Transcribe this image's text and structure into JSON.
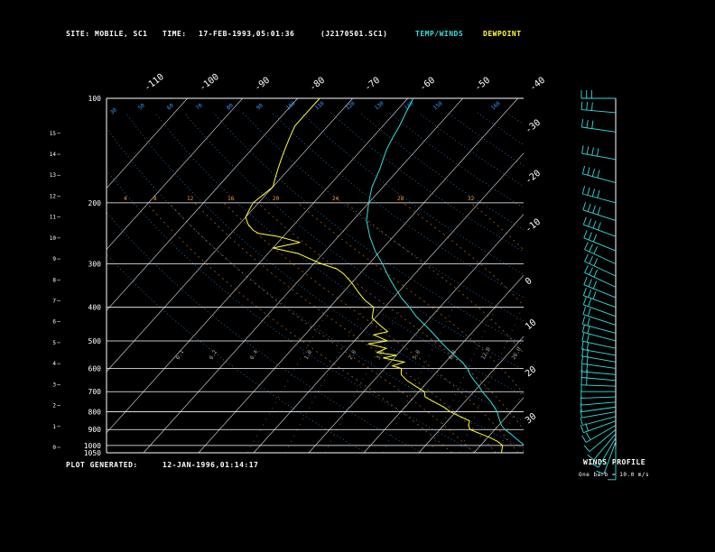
{
  "header": {
    "site_label": "SITE:",
    "site_value": "MOBILE, SC1",
    "time_label": "TIME:",
    "time_value": "17-FEB-1993,05:01:36",
    "file_name": "(J2170501.SC1)",
    "temp_winds_label": "TEMP/WINDS",
    "dewpoint_label": "DEWPOINT"
  },
  "footer": {
    "plot_generated_label": "PLOT GENERATED:",
    "plot_generated_value": "12-JAN-1996,01:14:17",
    "winds_profile_label": "WINDS PROFILE",
    "barb_note": "One barb = 10.0 m/s"
  },
  "colors": {
    "background": "#000000",
    "text": "#ffffff",
    "temperature_wind": "#33dddd",
    "dewpoint": "#ffff33",
    "isobar": "#ffffff",
    "isotherm": "#ffffff",
    "mixing_ratio": "#ff6600",
    "dry_adiabat": "#3399ff",
    "moist_adiabat": "#ff9933"
  },
  "chart_data": {
    "type": "skew-t log-p",
    "pressure_ticks": [
      100,
      200,
      300,
      400,
      500,
      600,
      700,
      800,
      900,
      1000,
      1050
    ],
    "height_km_ticks": [
      15,
      14,
      13,
      12,
      11,
      10,
      9,
      8,
      7,
      6,
      5,
      4,
      3,
      2,
      1,
      0
    ],
    "top_temp_ticks": [
      "-110",
      "-100",
      "-90",
      "-80",
      "-70",
      "-60",
      "-50",
      "-40"
    ],
    "right_temp_ticks": [
      "-30",
      "-20",
      "-10",
      "0",
      "10",
      "20",
      "30"
    ],
    "isotherms_c": [
      -110,
      -100,
      -90,
      -80,
      -70,
      -60,
      -50,
      -40,
      -30,
      -20,
      -10,
      0,
      10,
      20,
      30,
      40
    ],
    "dry_adiabat_labels": [
      "30",
      "50",
      "60",
      "70",
      "80",
      "90",
      "100",
      "110",
      "120",
      "130",
      "140",
      "150",
      "160"
    ],
    "mixing_ratio_labels": [
      "0.1",
      "0.2",
      "0.4",
      "1.0",
      "2.0",
      "3.0",
      "5.0",
      "8.0",
      "12.0",
      "20.0"
    ],
    "moist_labels": [
      "4",
      "8",
      "12",
      "16",
      "20",
      "24",
      "28",
      "32"
    ],
    "ylim_hpa": [
      100,
      1050
    ],
    "temperature_c": [
      [
        1050,
        9.0
      ],
      [
        1000,
        8.0
      ],
      [
        975,
        6.5
      ],
      [
        950,
        5.0
      ],
      [
        925,
        3.5
      ],
      [
        900,
        1.8
      ],
      [
        875,
        0.5
      ],
      [
        850,
        -0.5
      ],
      [
        825,
        -1.5
      ],
      [
        800,
        -2.5
      ],
      [
        775,
        -3.8
      ],
      [
        750,
        -5.2
      ],
      [
        725,
        -6.8
      ],
      [
        700,
        -8.5
      ],
      [
        675,
        -10.0
      ],
      [
        650,
        -11.8
      ],
      [
        625,
        -13.5
      ],
      [
        600,
        -15.0
      ],
      [
        575,
        -17.0
      ],
      [
        550,
        -19.5
      ],
      [
        525,
        -22.0
      ],
      [
        500,
        -24.5
      ],
      [
        475,
        -27.0
      ],
      [
        450,
        -29.8
      ],
      [
        425,
        -32.8
      ],
      [
        400,
        -35.5
      ],
      [
        375,
        -38.6
      ],
      [
        350,
        -41.5
      ],
      [
        325,
        -44.5
      ],
      [
        300,
        -47.5
      ],
      [
        275,
        -51.0
      ],
      [
        250,
        -54.3
      ],
      [
        225,
        -57.5
      ],
      [
        200,
        -60.0
      ],
      [
        180,
        -62.0
      ],
      [
        160,
        -63.5
      ],
      [
        150,
        -64.5
      ],
      [
        140,
        -65.5
      ],
      [
        130,
        -66.3
      ],
      [
        120,
        -67.0
      ],
      [
        110,
        -68.0
      ],
      [
        100,
        -69.0
      ]
    ],
    "dewpoint_c": [
      [
        1050,
        5.0
      ],
      [
        1000,
        4.0
      ],
      [
        975,
        2.5
      ],
      [
        950,
        0.5
      ],
      [
        925,
        -2.0
      ],
      [
        900,
        -4.5
      ],
      [
        875,
        -5.5
      ],
      [
        850,
        -6.0
      ],
      [
        825,
        -8.5
      ],
      [
        800,
        -11.0
      ],
      [
        775,
        -13.0
      ],
      [
        750,
        -15.5
      ],
      [
        725,
        -18.0
      ],
      [
        700,
        -19.0
      ],
      [
        675,
        -21.5
      ],
      [
        650,
        -24.0
      ],
      [
        625,
        -26.0
      ],
      [
        600,
        -27.0
      ],
      [
        590,
        -29.0
      ],
      [
        575,
        -27.5
      ],
      [
        560,
        -32.0
      ],
      [
        550,
        -30.0
      ],
      [
        540,
        -34.0
      ],
      [
        525,
        -33.0
      ],
      [
        510,
        -37.0
      ],
      [
        500,
        -34.0
      ],
      [
        480,
        -37.5
      ],
      [
        470,
        -35.5
      ],
      [
        450,
        -38.0
      ],
      [
        430,
        -40.5
      ],
      [
        400,
        -42.0
      ],
      [
        380,
        -45.0
      ],
      [
        360,
        -47.5
      ],
      [
        340,
        -50.0
      ],
      [
        320,
        -53.0
      ],
      [
        310,
        -55.0
      ],
      [
        300,
        -58.5
      ],
      [
        290,
        -61.5
      ],
      [
        280,
        -64.5
      ],
      [
        270,
        -70.0
      ],
      [
        260,
        -66.0
      ],
      [
        250,
        -71.0
      ],
      [
        245,
        -75.0
      ],
      [
        240,
        -76.5
      ],
      [
        230,
        -78.5
      ],
      [
        220,
        -80.0
      ],
      [
        210,
        -80.5
      ],
      [
        200,
        -81.0
      ],
      [
        190,
        -80.5
      ],
      [
        180,
        -80.0
      ],
      [
        170,
        -81.0
      ],
      [
        160,
        -82.0
      ],
      [
        150,
        -83.0
      ],
      [
        140,
        -84.0
      ],
      [
        130,
        -85.0
      ],
      [
        120,
        -86.0
      ],
      [
        110,
        -86.0
      ],
      [
        100,
        -86.0
      ]
    ],
    "winds": {
      "pressures_hpa": [
        1000,
        975,
        950,
        925,
        900,
        875,
        850,
        825,
        800,
        775,
        750,
        725,
        700,
        675,
        650,
        625,
        600,
        575,
        550,
        525,
        500,
        475,
        450,
        425,
        400,
        375,
        350,
        325,
        300,
        275,
        250,
        225,
        200,
        175,
        150,
        125,
        110,
        100
      ],
      "speed_ms": [
        5,
        8,
        10,
        12,
        14,
        15,
        15,
        14,
        13,
        12,
        12,
        13,
        14,
        16,
        17,
        18,
        18,
        19,
        20,
        21,
        22,
        22,
        23,
        24,
        25,
        26,
        27,
        28,
        30,
        32,
        35,
        38,
        40,
        38,
        35,
        32,
        28,
        25
      ],
      "direction_deg": [
        180,
        200,
        210,
        220,
        230,
        240,
        250,
        255,
        260,
        262,
        265,
        268,
        270,
        272,
        275,
        275,
        278,
        280,
        280,
        282,
        285,
        285,
        288,
        290,
        290,
        292,
        295,
        295,
        295,
        292,
        290,
        288,
        285,
        285,
        280,
        278,
        275,
        270
      ]
    },
    "title": "",
    "xlabel": "",
    "ylabel": ""
  }
}
